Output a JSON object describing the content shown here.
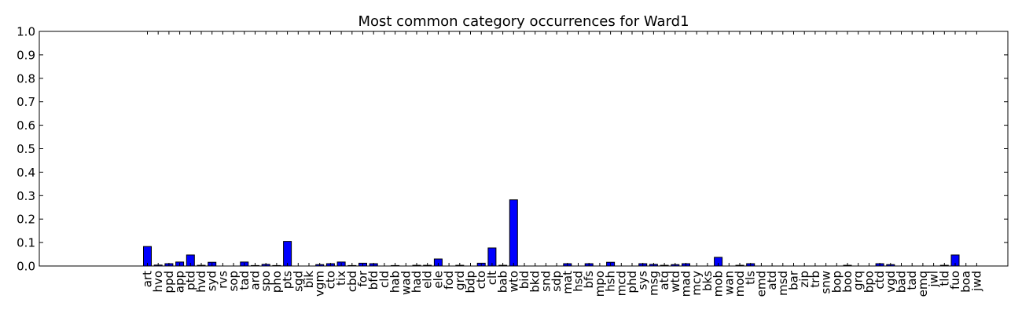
{
  "chart_data": {
    "type": "bar",
    "title": "Most common category occurrences for Ward1",
    "xlabel": "",
    "ylabel": "",
    "ylim": [
      0,
      1.0
    ],
    "yticks": [
      "0.0",
      "0.1",
      "0.2",
      "0.3",
      "0.4",
      "0.5",
      "0.6",
      "0.7",
      "0.8",
      "0.9",
      "1.0"
    ],
    "grid": false,
    "bar_color": "#0000ff",
    "categories": [
      "art",
      "hvo",
      "ppd",
      "app",
      "ptd",
      "hvd",
      "syd",
      "rvs",
      "sop",
      "tad",
      "ard",
      "spo",
      "pho",
      "pts",
      "sgd",
      "bik",
      "vgm",
      "cto",
      "tix",
      "cbd",
      "for",
      "bfd",
      "cld",
      "hab",
      "wad",
      "had",
      "eld",
      "ele",
      "fod",
      "grd",
      "bdp",
      "cto",
      "clt",
      "bab",
      "wto",
      "bid",
      "bkd",
      "snd",
      "sdp",
      "mat",
      "hsd",
      "bfs",
      "mpo",
      "hsh",
      "mcd",
      "phd",
      "sys",
      "msg",
      "atq",
      "wtd",
      "mad",
      "mcy",
      "bks",
      "mob",
      "wan",
      "mod",
      "tls",
      "emd",
      "atd",
      "msd",
      "bar",
      "zip",
      "trb",
      "snw",
      "bop",
      "boo",
      "grq",
      "bpo",
      "ctd",
      "vgd",
      "bad",
      "tad",
      "emq",
      "jwl",
      "tld",
      "fuo",
      "boa",
      "jwd"
    ],
    "values": [
      0.083,
      0.004,
      0.01,
      0.017,
      0.047,
      0.003,
      0.016,
      0.0,
      0.0,
      0.017,
      0.002,
      0.007,
      0.002,
      0.105,
      0.0,
      0.0,
      0.006,
      0.01,
      0.017,
      0.002,
      0.012,
      0.01,
      0.0,
      0.002,
      0.0,
      0.003,
      0.003,
      0.03,
      0.0,
      0.003,
      0.0,
      0.012,
      0.077,
      0.003,
      0.282,
      0.0,
      0.0,
      0.0,
      0.0,
      0.01,
      0.0,
      0.01,
      0.0,
      0.016,
      0.0,
      0.0,
      0.01,
      0.007,
      0.003,
      0.006,
      0.01,
      0.0,
      0.0,
      0.037,
      0.0,
      0.003,
      0.01,
      0.0,
      0.0,
      0.0,
      0.0,
      0.0,
      0.0,
      0.0,
      0.0,
      0.003,
      0.0,
      0.0,
      0.01,
      0.006,
      0.0,
      0.0,
      0.0,
      0.0,
      0.003,
      0.047,
      0.0,
      0.0
    ]
  }
}
